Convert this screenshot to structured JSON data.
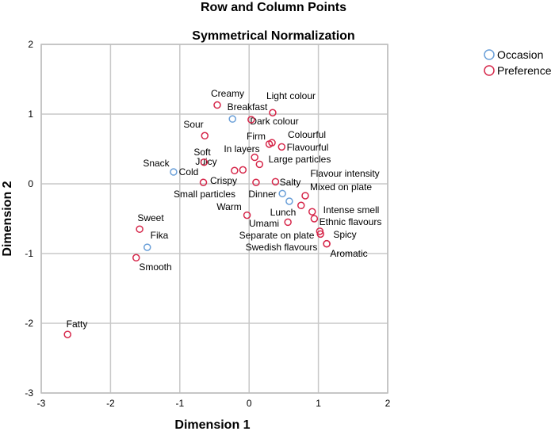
{
  "chart_data": {
    "type": "scatter",
    "title": "Row and Column Points",
    "subtitle": "Symmetrical Normalization",
    "xlabel": "Dimension 1",
    "ylabel": "Dimension 2",
    "xlim": [
      -3,
      2
    ],
    "ylim": [
      -3,
      2
    ],
    "xticks": [
      "-3",
      "-2",
      "-1",
      "0",
      "1",
      "2"
    ],
    "yticks": [
      "2",
      "1",
      "0",
      "-1",
      "-2",
      "-3"
    ],
    "grid": true,
    "legend_position": "top-right",
    "series": [
      {
        "name": "Occasion",
        "color": "#6a9fd8",
        "points": [
          {
            "label": "Breakfast",
            "x": -0.24,
            "y": 0.93
          },
          {
            "label": "Snack",
            "x": -1.09,
            "y": 0.17
          },
          {
            "label": "Dinner",
            "x": 0.48,
            "y": -0.14
          },
          {
            "label": "Lunch",
            "x": 0.58,
            "y": -0.25
          },
          {
            "label": "Fika",
            "x": -1.47,
            "y": -0.91
          }
        ]
      },
      {
        "name": "Preference",
        "color": "#d6274a",
        "points": [
          {
            "label": "Creamy",
            "x": -0.46,
            "y": 1.13
          },
          {
            "label": "Light colour",
            "x": 0.34,
            "y": 1.02
          },
          {
            "label": "Dark colour",
            "x": 0.03,
            "y": 0.92
          },
          {
            "label": "Sour",
            "x": -0.64,
            "y": 0.69
          },
          {
            "label": "Firm",
            "x": 0.29,
            "y": 0.57
          },
          {
            "label": "Colourful",
            "x": 0.33,
            "y": 0.59
          },
          {
            "label": "Flavourful",
            "x": 0.47,
            "y": 0.53
          },
          {
            "label": "Soft",
            "x": -0.65,
            "y": 0.31
          },
          {
            "label": "In layers",
            "x": 0.08,
            "y": 0.38
          },
          {
            "label": "Large particles",
            "x": 0.15,
            "y": 0.28
          },
          {
            "label": "Juicy",
            "x": -0.21,
            "y": 0.19
          },
          {
            "label": "Crispy",
            "x": -0.09,
            "y": 0.2
          },
          {
            "label": "Cold",
            "x": -0.66,
            "y": 0.02
          },
          {
            "label": "Small particles",
            "x": 0.1,
            "y": 0.02
          },
          {
            "label": "Salty",
            "x": 0.38,
            "y": 0.03
          },
          {
            "label": "Flavour intensity",
            "x": 0.81,
            "y": -0.17
          },
          {
            "label": "Mixed on plate",
            "x": 0.75,
            "y": -0.31
          },
          {
            "label": "Warm",
            "x": -0.03,
            "y": -0.45
          },
          {
            "label": "Intense smell",
            "x": 0.91,
            "y": -0.4
          },
          {
            "label": "Ethnic flavours",
            "x": 0.94,
            "y": -0.5
          },
          {
            "label": "Umami",
            "x": 0.56,
            "y": -0.55
          },
          {
            "label": "Separate on plate",
            "x": 1.02,
            "y": -0.68
          },
          {
            "label": "Spicy",
            "x": 1.03,
            "y": -0.72
          },
          {
            "label": "Swedish flavours",
            "x": 1.12,
            "y": -0.86
          },
          {
            "label": "Aromatic",
            "x": 1.12,
            "y": -0.86
          },
          {
            "label": "Sweet",
            "x": -1.58,
            "y": -0.65
          },
          {
            "label": "Smooth",
            "x": -1.63,
            "y": -1.06
          },
          {
            "label": "Fatty",
            "x": -2.62,
            "y": -2.16
          }
        ]
      }
    ]
  }
}
